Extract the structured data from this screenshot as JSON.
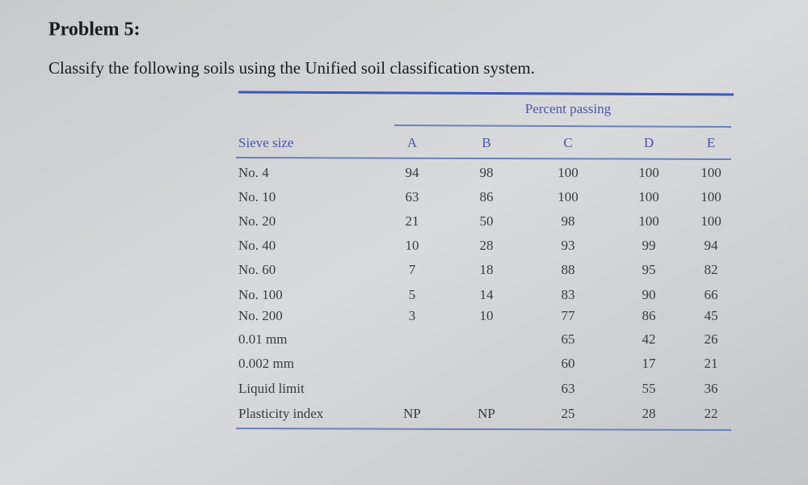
{
  "header": {
    "title": "Problem 5:",
    "instruction": "Classify the following soils using the Unified soil classification system."
  },
  "table": {
    "group_header": "Percent passing",
    "columns": [
      "Sieve size",
      "A",
      "B",
      "C",
      "D",
      "E"
    ],
    "rows": [
      [
        "No. 4",
        94,
        98,
        100,
        100,
        100
      ],
      [
        "No. 10",
        63,
        86,
        100,
        100,
        100
      ],
      [
        "No. 20",
        21,
        50,
        98,
        100,
        100
      ],
      [
        "No. 40",
        10,
        28,
        93,
        99,
        94
      ],
      [
        "No. 60",
        7,
        18,
        88,
        95,
        82
      ],
      [
        "No. 100",
        5,
        14,
        83,
        90,
        66
      ],
      [
        "No. 200",
        3,
        10,
        77,
        86,
        45
      ],
      [
        "0.01 mm",
        null,
        null,
        65,
        42,
        26
      ],
      [
        "0.002 mm",
        null,
        null,
        60,
        17,
        21
      ],
      [
        "Liquid limit",
        null,
        null,
        63,
        55,
        36
      ],
      [
        "Plasticity index",
        "NP",
        "NP",
        25,
        28,
        22
      ]
    ]
  }
}
